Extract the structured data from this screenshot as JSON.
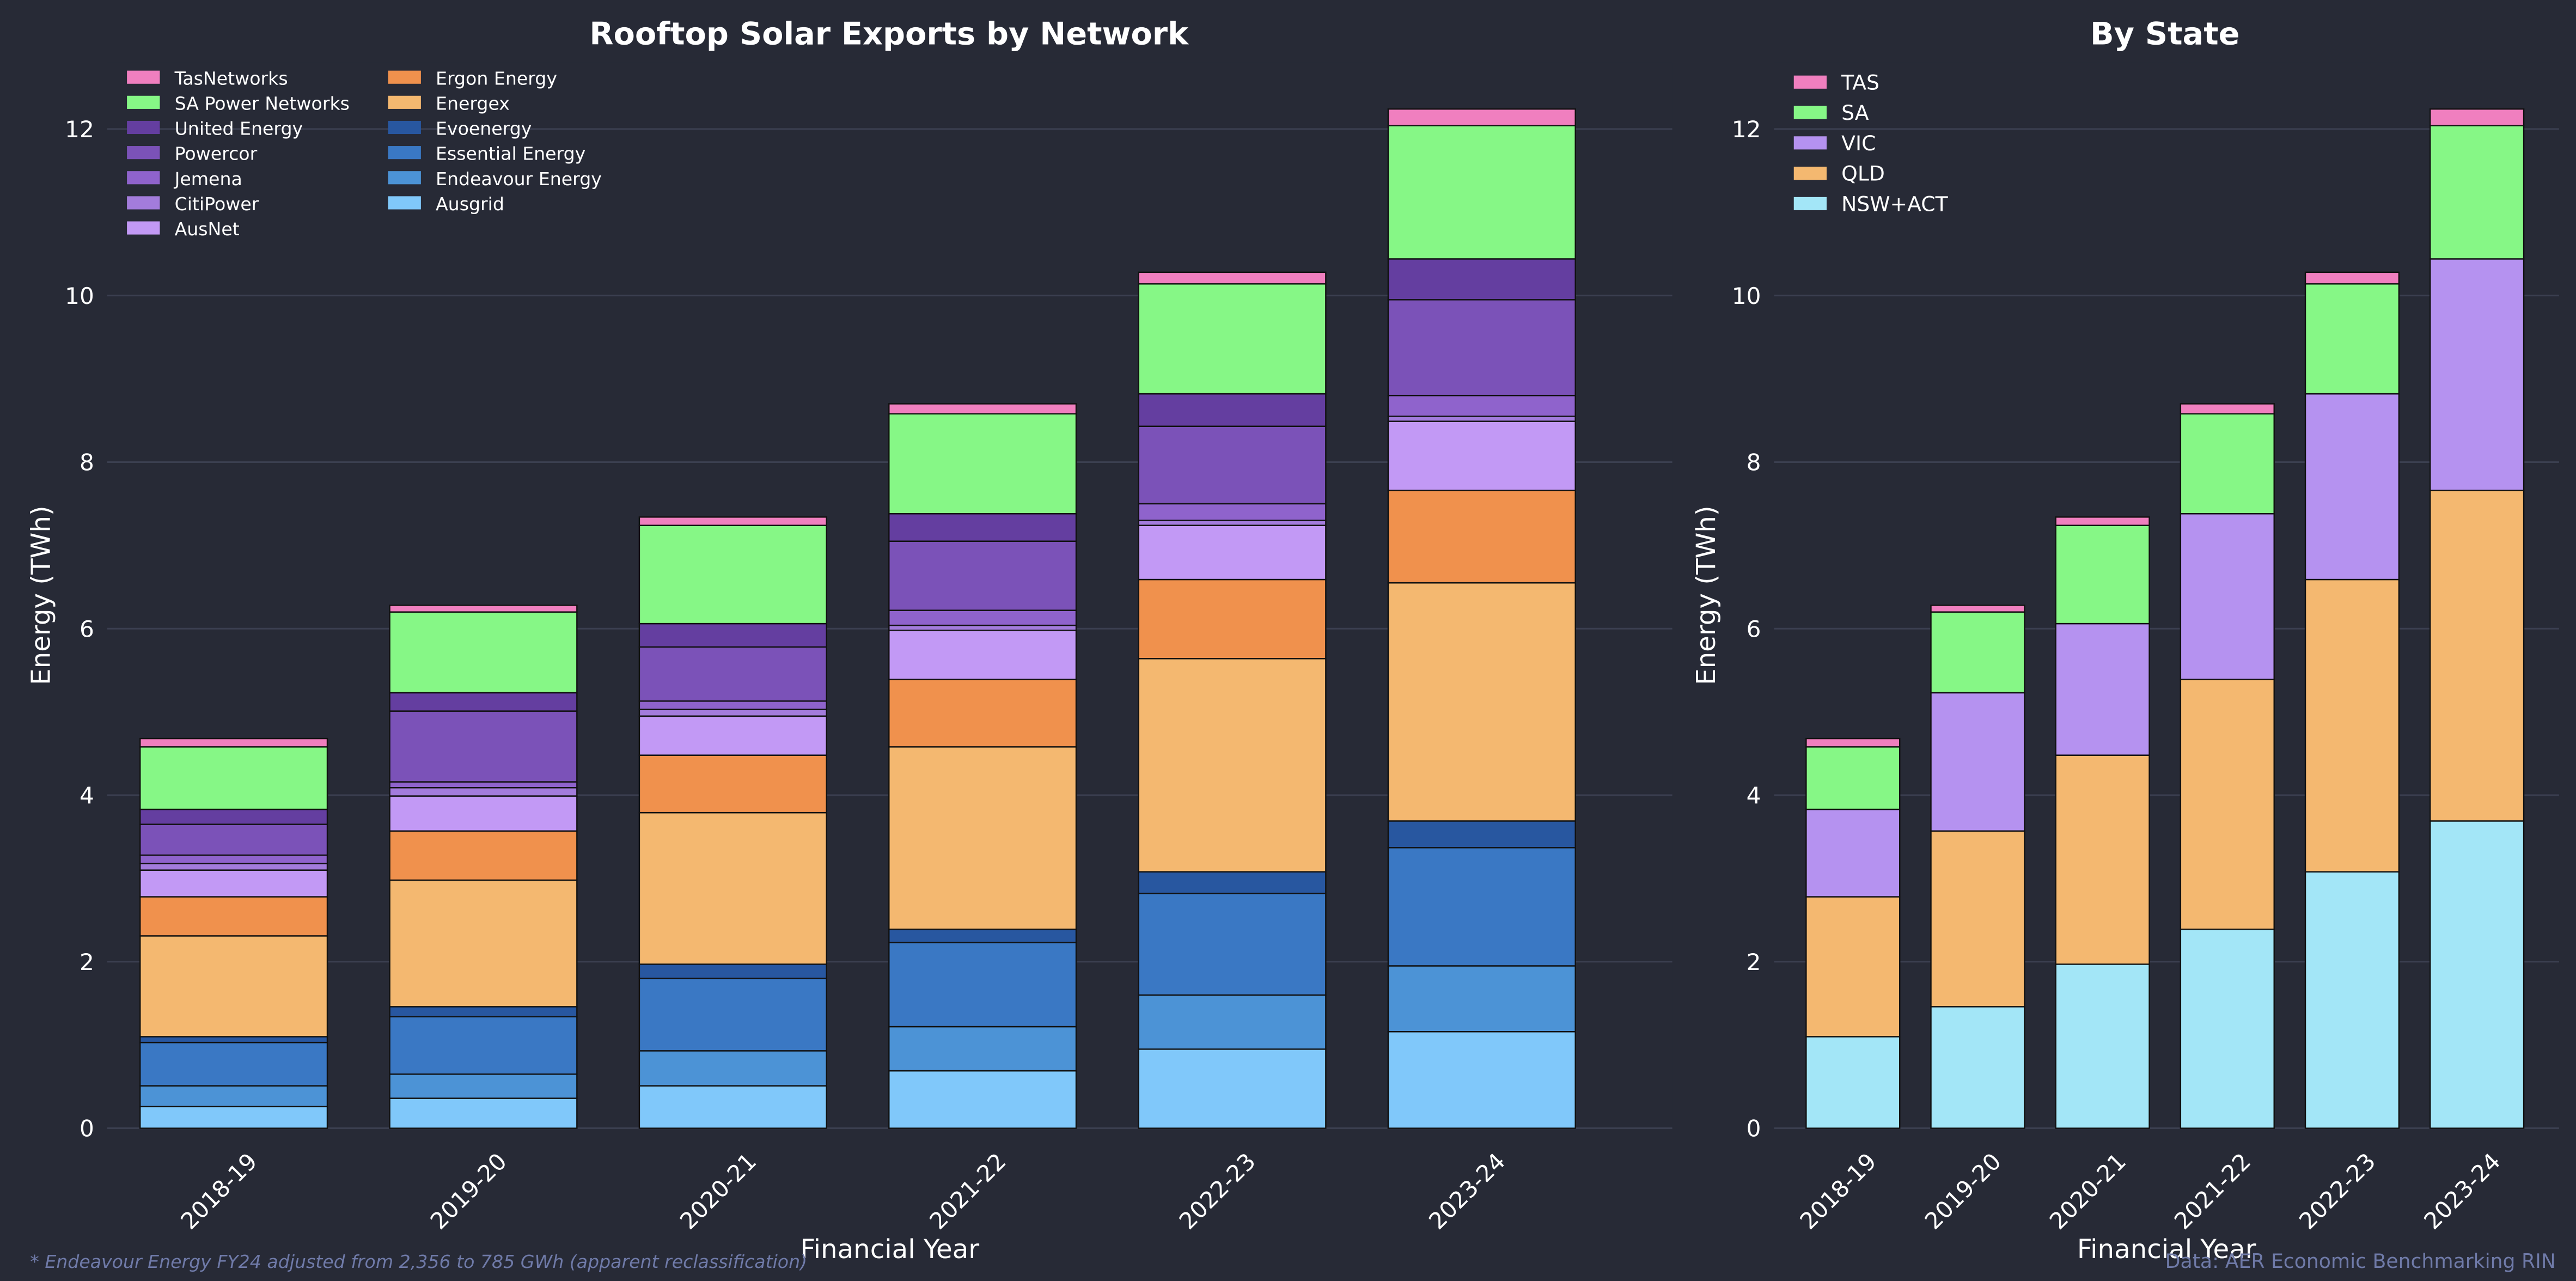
{
  "chart_data": [
    {
      "type": "bar",
      "stacked": true,
      "title": "Rooftop Solar Exports by Network",
      "xlabel": "Financial Year",
      "ylabel": "Energy (TWh)",
      "ylim": [
        0,
        12.8
      ],
      "yticks": [
        0,
        2,
        4,
        6,
        8,
        10,
        12
      ],
      "grid": true,
      "legend_position": "top-left",
      "categories": [
        "2018-19",
        "2019-20",
        "2020-21",
        "2021-22",
        "2022-23",
        "2023-24"
      ],
      "series": [
        {
          "name": "Ausgrid",
          "color": "#80c8fa",
          "values": [
            0.26,
            0.36,
            0.51,
            0.69,
            0.95,
            1.16
          ]
        },
        {
          "name": "Endeavour Energy",
          "color": "#4c93d6",
          "values": [
            0.25,
            0.29,
            0.42,
            0.53,
            0.65,
            0.79
          ]
        },
        {
          "name": "Essential Energy",
          "color": "#3a78c4",
          "values": [
            0.52,
            0.69,
            0.87,
            1.01,
            1.22,
            1.42
          ]
        },
        {
          "name": "Evoenergy",
          "color": "#2857a0",
          "values": [
            0.07,
            0.12,
            0.17,
            0.16,
            0.26,
            0.32
          ]
        },
        {
          "name": "Energex",
          "color": "#f4b870",
          "values": [
            1.21,
            1.52,
            1.82,
            2.19,
            2.56,
            2.86
          ]
        },
        {
          "name": "Ergon Energy",
          "color": "#f0914d",
          "values": [
            0.47,
            0.59,
            0.69,
            0.81,
            0.95,
            1.11
          ]
        },
        {
          "name": "AusNet",
          "color": "#c299f5",
          "values": [
            0.32,
            0.42,
            0.47,
            0.59,
            0.65,
            0.83
          ]
        },
        {
          "name": "CitiPower",
          "color": "#a37cdc",
          "values": [
            0.08,
            0.1,
            0.08,
            0.06,
            0.06,
            0.06
          ]
        },
        {
          "name": "Jemena",
          "color": "#8f63cc",
          "values": [
            0.1,
            0.07,
            0.1,
            0.18,
            0.2,
            0.25
          ]
        },
        {
          "name": "Powercor",
          "color": "#7b52b8",
          "values": [
            0.37,
            0.85,
            0.65,
            0.83,
            0.93,
            1.15
          ]
        },
        {
          "name": "United Energy",
          "color": "#643ea0",
          "values": [
            0.18,
            0.22,
            0.28,
            0.33,
            0.39,
            0.49
          ]
        },
        {
          "name": "SA Power Networks",
          "color": "#86f786",
          "values": [
            0.75,
            0.97,
            1.18,
            1.2,
            1.32,
            1.6
          ]
        },
        {
          "name": "TasNetworks",
          "color": "#f07fbf",
          "values": [
            0.1,
            0.08,
            0.1,
            0.12,
            0.14,
            0.2
          ]
        }
      ]
    },
    {
      "type": "bar",
      "stacked": true,
      "title": "By State",
      "xlabel": "Financial Year",
      "ylabel": "Energy (TWh)",
      "ylim": [
        0,
        12.8
      ],
      "yticks": [
        0,
        2,
        4,
        6,
        8,
        10,
        12
      ],
      "grid": true,
      "legend_position": "top-left",
      "categories": [
        "2018-19",
        "2019-20",
        "2020-21",
        "2021-22",
        "2022-23",
        "2023-24"
      ],
      "series": [
        {
          "name": "NSW+ACT",
          "color": "#a3e6f7",
          "values": [
            1.1,
            1.46,
            1.97,
            2.39,
            3.08,
            3.69
          ]
        },
        {
          "name": "QLD",
          "color": "#f4b870",
          "values": [
            1.68,
            2.11,
            2.51,
            3.0,
            3.51,
            3.97
          ]
        },
        {
          "name": "VIC",
          "color": "#b592f0",
          "values": [
            1.05,
            1.66,
            1.58,
            1.99,
            2.23,
            2.78
          ]
        },
        {
          "name": "SA",
          "color": "#86f786",
          "values": [
            0.75,
            0.97,
            1.18,
            1.2,
            1.32,
            1.6
          ]
        },
        {
          "name": "TAS",
          "color": "#f07fbf",
          "values": [
            0.1,
            0.08,
            0.1,
            0.12,
            0.14,
            0.2
          ]
        }
      ]
    }
  ],
  "footnote": "* Endeavour Energy FY24 adjusted from 2,356 to 785 GWh (apparent reclassification)",
  "source": "Data: AER Economic Benchmarking RIN",
  "colors": {
    "background": "#272a36",
    "grid": "#3b3f50",
    "text": "#ffffff",
    "note": "#6f7aa8"
  }
}
